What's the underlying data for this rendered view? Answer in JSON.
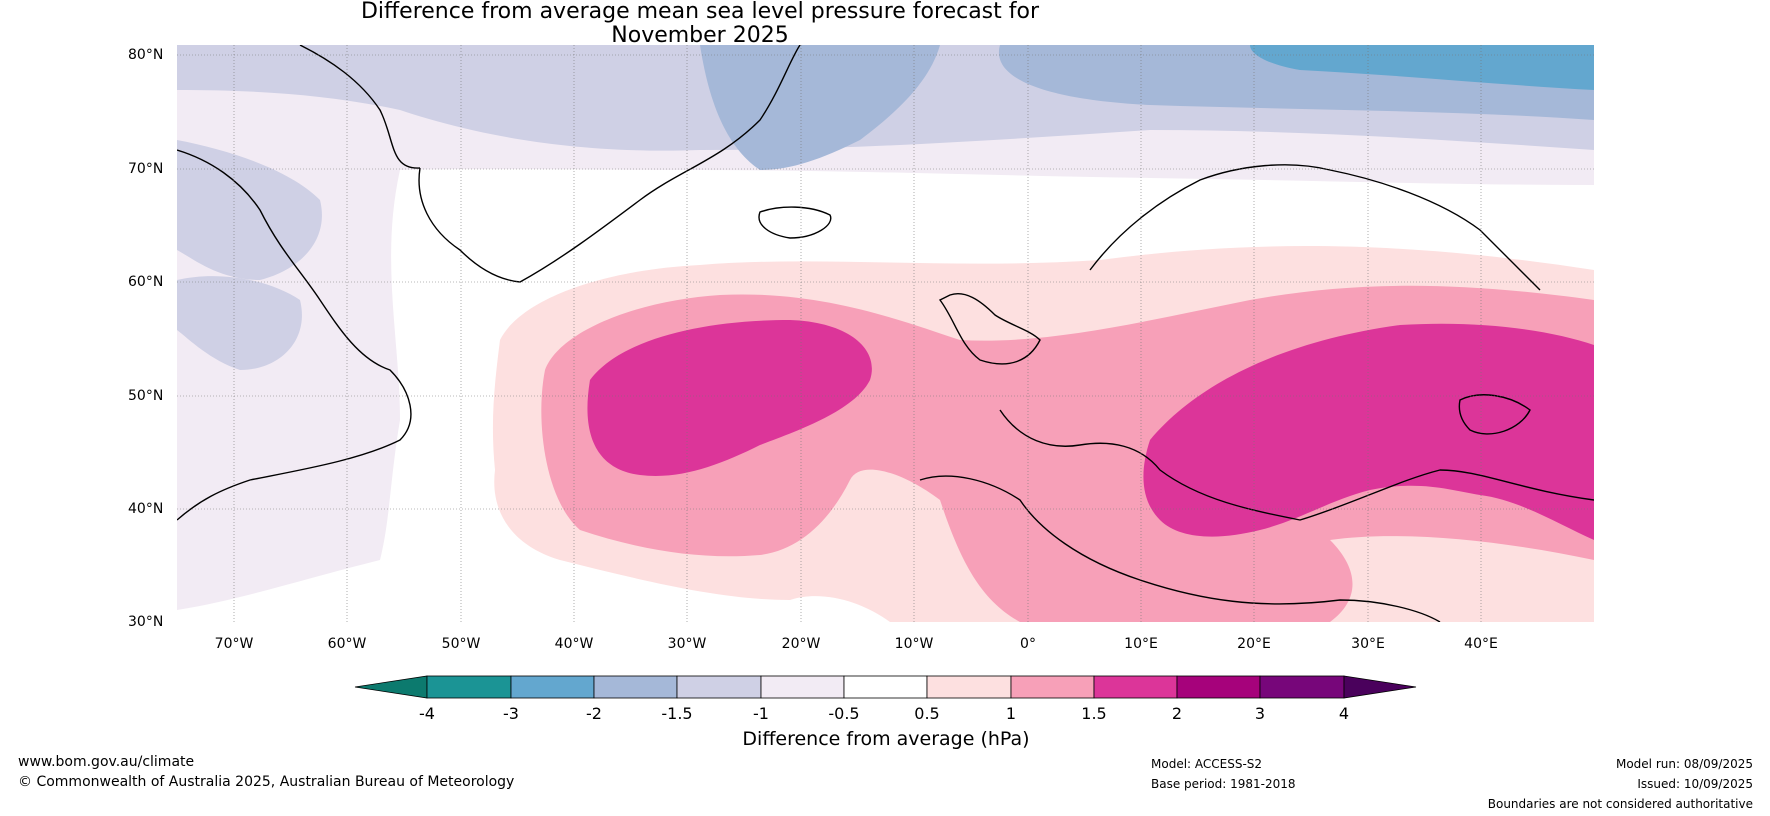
{
  "title": {
    "line1": "Difference from average mean sea level pressure forecast for",
    "line2": "November 2025"
  },
  "map": {
    "latitude_labels": [
      "80°N",
      "70°N",
      "60°N",
      "50°N",
      "40°N",
      "30°N"
    ],
    "longitude_labels": [
      "70°W",
      "60°W",
      "50°W",
      "40°W",
      "30°W",
      "20°W",
      "10°W",
      "0°",
      "10°E",
      "20°E",
      "30°E",
      "40°E"
    ],
    "extent": {
      "lon_min": -75,
      "lon_max": 50,
      "lat_min": 30,
      "lat_max": 81
    }
  },
  "colorbar": {
    "ticks": [
      "-4",
      "-3",
      "-2",
      "-1.5",
      "-1",
      "-0.5",
      "0.5",
      "1",
      "1.5",
      "2",
      "3",
      "4"
    ],
    "colors": [
      "#0c7a6e",
      "#1b9495",
      "#63a7cf",
      "#a5b8d8",
      "#cfd0e5",
      "#f2ebf4",
      "#ffffff",
      "#fde0e0",
      "#f7a0b8",
      "#dc3599",
      "#a6027b",
      "#77067a",
      "#4a015c"
    ],
    "title": "Difference from average (hPa)"
  },
  "footer": {
    "website": "www.bom.gov.au/climate",
    "copyright": "© Commonwealth of Australia 2025, Australian Bureau of Meteorology",
    "model": "Model: ACCESS-S2",
    "base_period": "Base period: 1981-2018",
    "model_run": "Model run: 08/09/2025",
    "issued": "Issued: 10/09/2025",
    "disclaimer": "Boundaries are not considered authoritative"
  }
}
